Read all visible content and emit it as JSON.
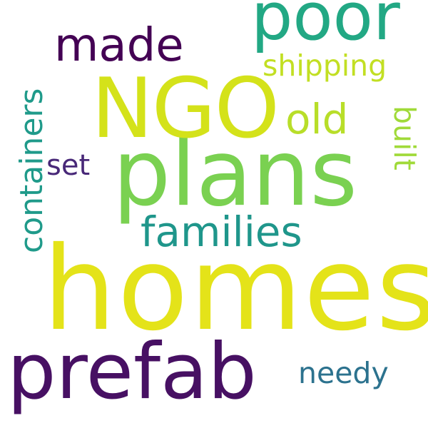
{
  "words": [
    {
      "text": "homes",
      "color": "#e4e319"
    },
    {
      "text": "plans",
      "color": "#7ad151"
    },
    {
      "text": "NGO",
      "color": "#d4e21a"
    },
    {
      "text": "prefab",
      "color": "#471063"
    },
    {
      "text": "poor",
      "color": "#22a884"
    },
    {
      "text": "families",
      "color": "#1f968b"
    },
    {
      "text": "made",
      "color": "#440154"
    },
    {
      "text": "containers",
      "color": "#1f9a8a"
    },
    {
      "text": "shipping",
      "color": "#c2df23"
    },
    {
      "text": "old",
      "color": "#b8de29"
    },
    {
      "text": "needy",
      "color": "#2c728e"
    },
    {
      "text": "built",
      "color": "#a0da39"
    },
    {
      "text": "set",
      "color": "#482878"
    }
  ]
}
